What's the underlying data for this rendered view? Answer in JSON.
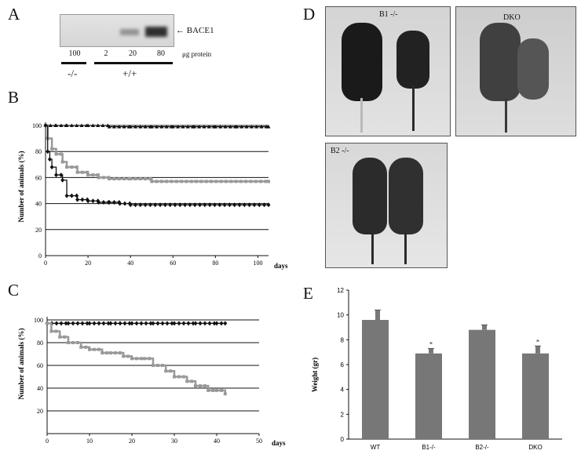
{
  "panels": {
    "A": "A",
    "B": "B",
    "C": "C",
    "D": "D",
    "E": "E"
  },
  "blot": {
    "label": "BACE1",
    "arrow": "←",
    "lanes": [
      "100",
      "2",
      "20",
      "80"
    ],
    "unit": "μg protein",
    "genotypes": [
      "-/-",
      "+/+"
    ]
  },
  "photos": {
    "b1": "B1 -/-",
    "dko": "DKO",
    "b2": "B2 -/-"
  },
  "chart_data": [
    {
      "type": "line",
      "panel": "B",
      "ylabel": "Number of animals (%)",
      "xlabel": "days",
      "xlim": [
        0,
        105
      ],
      "ylim": [
        0,
        100
      ],
      "xticks": [
        "0",
        "20",
        "40",
        "60",
        "80",
        "100"
      ],
      "yticks": [
        "0",
        "20",
        "40",
        "60",
        "80",
        "100"
      ],
      "grid": true,
      "series": [
        {
          "color": "#111111",
          "marker": "triangle",
          "x": [
            0,
            5,
            10,
            20,
            30,
            40,
            50,
            60,
            70,
            80,
            90,
            105
          ],
          "y": [
            100,
            100,
            100,
            100,
            99,
            99,
            99,
            99,
            99,
            99,
            99,
            99
          ]
        },
        {
          "color": "#999999",
          "marker": "square",
          "x": [
            0,
            1,
            3,
            5,
            8,
            10,
            15,
            20,
            25,
            30,
            40,
            50,
            105
          ],
          "y": [
            100,
            90,
            82,
            78,
            72,
            68,
            64,
            62,
            60,
            59,
            59,
            57,
            57
          ]
        },
        {
          "color": "#111111",
          "marker": "diamond",
          "x": [
            0,
            1,
            2,
            3,
            5,
            8,
            10,
            15,
            20,
            25,
            30,
            35,
            40,
            105
          ],
          "y": [
            100,
            80,
            74,
            68,
            62,
            58,
            46,
            43,
            42,
            41,
            41,
            40,
            39,
            39
          ]
        }
      ]
    },
    {
      "type": "line",
      "panel": "C",
      "ylabel": "Number of animals (%)",
      "xlabel": "days",
      "xlim": [
        0,
        50
      ],
      "ylim": [
        0,
        100
      ],
      "xticks": [
        "0",
        "10",
        "20",
        "30",
        "40",
        "50"
      ],
      "yticks": [
        "20",
        "40",
        "60",
        "80",
        "100"
      ],
      "grid": true,
      "series": [
        {
          "color": "#111111",
          "marker": "diamond",
          "x": [
            0,
            5,
            10,
            15,
            20,
            25,
            30,
            35,
            40,
            42
          ],
          "y": [
            97,
            97,
            97,
            97,
            97,
            97,
            97,
            97,
            97,
            97
          ]
        },
        {
          "color": "#999999",
          "marker": "square",
          "x": [
            0,
            1,
            3,
            5,
            8,
            10,
            13,
            15,
            18,
            20,
            23,
            25,
            28,
            30,
            33,
            35,
            38,
            40,
            42
          ],
          "y": [
            97,
            90,
            85,
            80,
            76,
            74,
            71,
            71,
            68,
            66,
            66,
            60,
            55,
            50,
            46,
            42,
            38,
            38,
            35
          ]
        }
      ]
    },
    {
      "type": "bar",
      "panel": "E",
      "ylabel": "Weight (gr)",
      "categories": [
        "WT",
        "B1-/-",
        "B2-/-",
        "DKO"
      ],
      "values": [
        9.6,
        6.9,
        8.8,
        6.9
      ],
      "errors": [
        0.8,
        0.4,
        0.4,
        0.6
      ],
      "significant": [
        "",
        "*",
        "",
        "*"
      ],
      "ylim": [
        0,
        12
      ],
      "yticks": [
        "0",
        "2",
        "4",
        "6",
        "8",
        "10",
        "12"
      ],
      "color": "#777777"
    }
  ]
}
